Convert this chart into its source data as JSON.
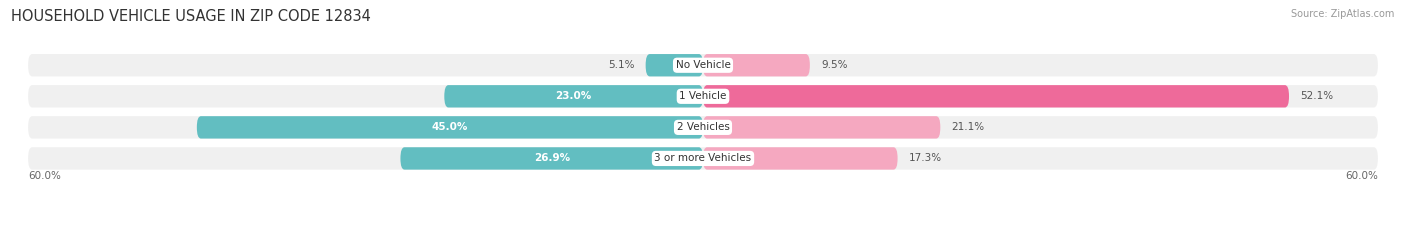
{
  "title": "HOUSEHOLD VEHICLE USAGE IN ZIP CODE 12834",
  "source": "Source: ZipAtlas.com",
  "categories": [
    "No Vehicle",
    "1 Vehicle",
    "2 Vehicles",
    "3 or more Vehicles"
  ],
  "owner_values": [
    5.1,
    23.0,
    45.0,
    26.9
  ],
  "renter_values": [
    9.5,
    52.1,
    21.1,
    17.3
  ],
  "owner_color": "#62bec1",
  "renter_color_light": "#f5a8c0",
  "renter_color_dark": "#ee6a9a",
  "axis_max": 60.0,
  "axis_label_left": "60.0%",
  "axis_label_right": "60.0%",
  "bg_color": "#ffffff",
  "bar_bg_color": "#e8e8e8",
  "row_bg_color": "#f0f0f0",
  "label_color_dark": "#555555",
  "label_color_white": "#ffffff",
  "title_fontsize": 10.5,
  "source_fontsize": 7,
  "bar_label_fontsize": 7.5,
  "category_fontsize": 7.5,
  "axis_fontsize": 7.5,
  "legend_fontsize": 7.5,
  "white_label_threshold": 15
}
